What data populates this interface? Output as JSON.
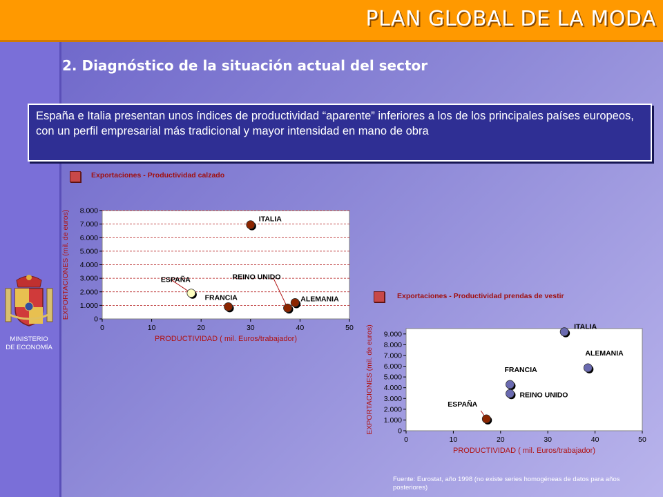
{
  "header": {
    "title": "PLAN GLOBAL DE LA MODA",
    "subtitle": "2. Diagnóstico de la situación actual del sector"
  },
  "intro_text": "España e Italia presentan unos índices de productividad “aparente” inferiores a los de los principales países europeos, con un perfil empresarial más tradicional y mayor intensidad en mano de obra",
  "ministry": {
    "line1": "MINISTERIO",
    "line2": "DE ECONOMÍA"
  },
  "source": "Fuente: Eurostat, año 1998 (no existe series homogéneas de datos para años posteriores)",
  "colors": {
    "header_bar": "#ff9900",
    "text_box": "#2f2f94",
    "point_dark": "#8b2500",
    "point_blue": "#6a6ab0",
    "point_light": "#ffffc0"
  },
  "chart_data": [
    {
      "type": "scatter",
      "title": "Exportaciones - Productividad calzado",
      "xlabel": "PRODUCTIVIDAD ( mil. Euros/trabajador)",
      "ylabel": "EXPORTACIONES (mil. de euros)",
      "xlim": [
        0,
        50
      ],
      "ylim": [
        0,
        8000
      ],
      "x_ticks": [
        "0",
        "10",
        "20",
        "30",
        "40",
        "50"
      ],
      "y_ticks": [
        "0",
        "1.000",
        "2.000",
        "3.000",
        "4.000",
        "5.000",
        "6.000",
        "7.000",
        "8.000"
      ],
      "grid": "horizontal-dashed",
      "points": [
        {
          "label": "ITALIA",
          "x": 30,
          "y": 6950,
          "color": "dark"
        },
        {
          "label": "ESPAÑA",
          "x": 18,
          "y": 1900,
          "color": "light"
        },
        {
          "label": "FRANCIA",
          "x": 25.5,
          "y": 900,
          "color": "dark"
        },
        {
          "label": "REINO UNIDO",
          "x": 37.5,
          "y": 800,
          "color": "dark"
        },
        {
          "label": "ALEMANIA",
          "x": 39,
          "y": 1200,
          "color": "dark"
        }
      ]
    },
    {
      "type": "scatter",
      "title": "Exportaciones - Productividad prendas de vestir",
      "xlabel": "PRODUCTIVIDAD ( mil. Euros/trabajador)",
      "ylabel": "EXPORTACIONES (mil. de euros)",
      "xlim": [
        0,
        50
      ],
      "ylim": [
        0,
        9500
      ],
      "x_ticks": [
        "0",
        "10",
        "20",
        "30",
        "40",
        "50"
      ],
      "y_ticks": [
        "0",
        "1.000",
        "2.000",
        "3.000",
        "4.000",
        "5.000",
        "6.000",
        "7.000",
        "8.000",
        "9.000"
      ],
      "grid": "none",
      "points": [
        {
          "label": "ITALIA",
          "x": 33.5,
          "y": 9200,
          "color": "blue"
        },
        {
          "label": "ALEMANIA",
          "x": 38.5,
          "y": 5850,
          "color": "blue"
        },
        {
          "label": "FRANCIA",
          "x": 22,
          "y": 4300,
          "color": "blue"
        },
        {
          "label": "REINO UNIDO",
          "x": 22,
          "y": 3450,
          "color": "blue"
        },
        {
          "label": "ESPAÑA",
          "x": 17,
          "y": 1100,
          "color": "dark"
        }
      ]
    }
  ]
}
